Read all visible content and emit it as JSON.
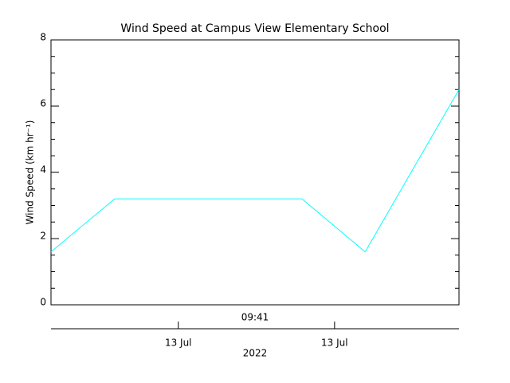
{
  "chart_data": {
    "type": "line",
    "title": "Wind Speed at Campus View Elementary School",
    "y_label": "Wind Speed (km hr⁻¹)",
    "x_top_label": "09:41",
    "x_label": "2022",
    "x": [
      0,
      15.6,
      61.5,
      77,
      100
    ],
    "xlim": [
      0,
      100
    ],
    "xticks": [
      {
        "value": 31.2,
        "label": "13 Jul"
      },
      {
        "value": 69.5,
        "label": "13 Jul"
      }
    ],
    "series": [
      {
        "color": "#00ffff",
        "values": [
          1.6,
          3.2,
          3.2,
          1.6,
          6.5
        ]
      }
    ],
    "ylim": [
      0,
      8
    ],
    "yticks": [
      0,
      2,
      4,
      6,
      8
    ]
  }
}
